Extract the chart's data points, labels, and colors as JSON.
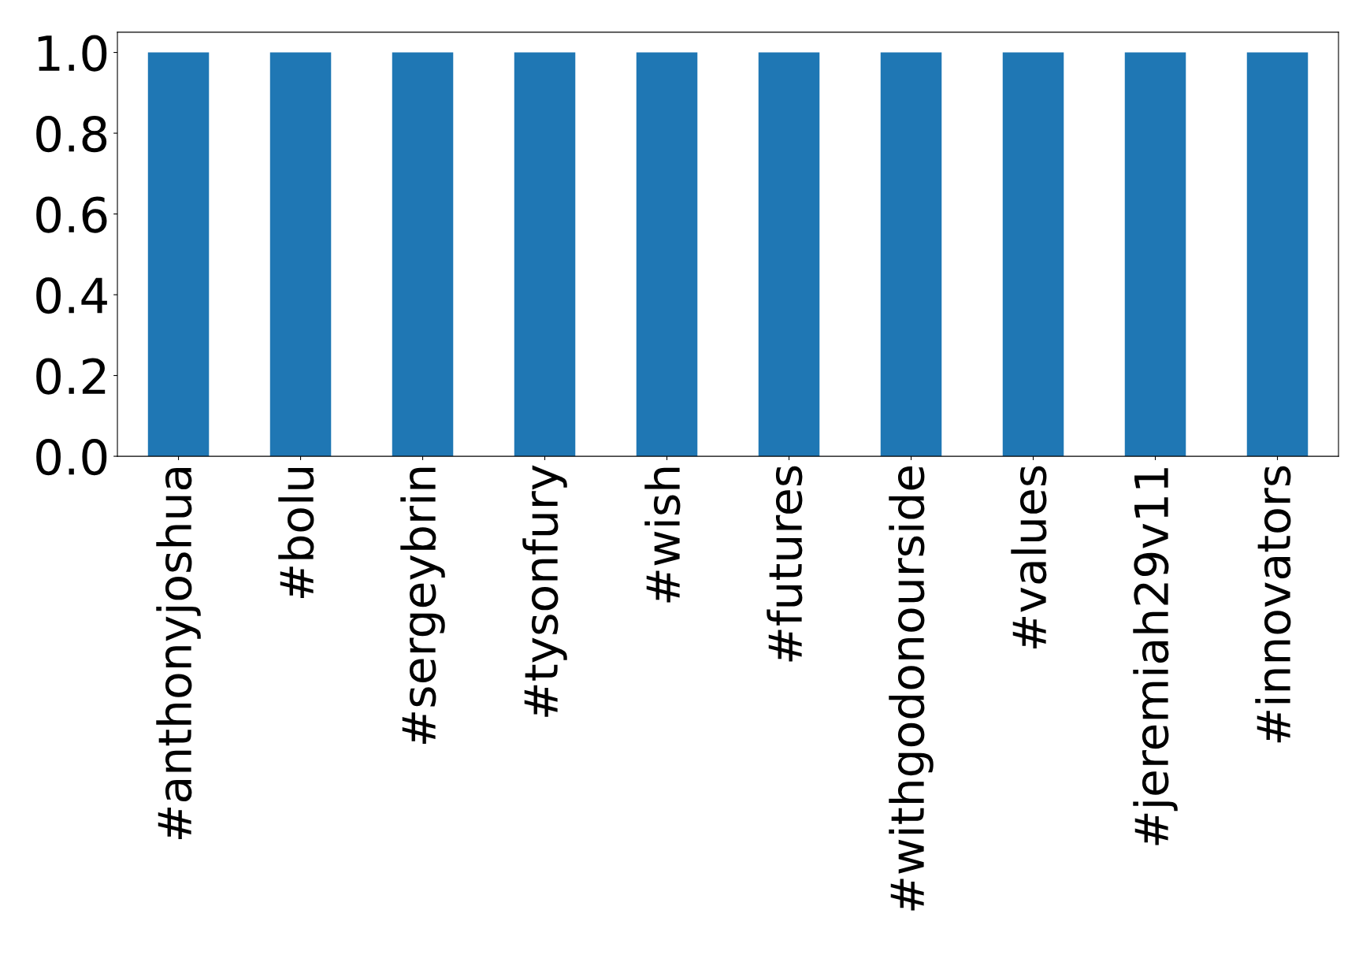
{
  "chart_data": {
    "type": "bar",
    "categories": [
      "#anthonyjoshua",
      "#bolu",
      "#sergeybrin",
      "#tysonfury",
      "#wish",
      "#futures",
      "#withgodonourside",
      "#values",
      "#jeremiah29v11",
      "#innovators"
    ],
    "values": [
      1.0,
      1.0,
      1.0,
      1.0,
      1.0,
      1.0,
      1.0,
      1.0,
      1.0,
      1.0
    ],
    "color": "#1f77b4",
    "ylim": [
      0,
      1.05
    ],
    "yticks": [
      {
        "value": 0,
        "label": "0.0"
      },
      {
        "value": 0.2,
        "label": "0.2"
      },
      {
        "value": 0.4,
        "label": "0.4"
      },
      {
        "value": 0.6,
        "label": "0.6"
      },
      {
        "value": 0.8,
        "label": "0.8"
      },
      {
        "value": 1.0,
        "label": "1.0"
      }
    ],
    "grid": false,
    "legend": false
  }
}
